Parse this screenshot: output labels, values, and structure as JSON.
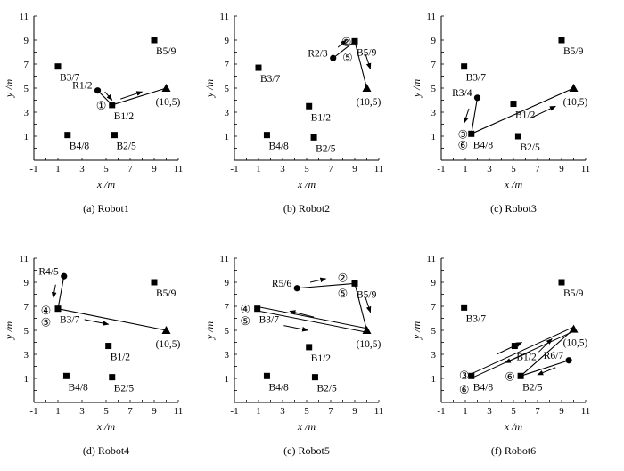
{
  "chart_data": [
    {
      "type": "scatter",
      "caption": "(a) Robot1",
      "xlabel": "x /m",
      "ylabel": "y /m",
      "xlim": [
        -1,
        11
      ],
      "ylim": [
        -1,
        11
      ],
      "xticks": [
        "-1",
        "1",
        "3",
        "5",
        "7",
        "9",
        "11"
      ],
      "yticks": [
        "1",
        "3",
        "5",
        "7",
        "9",
        "11"
      ],
      "boxes": [
        {
          "label": "B3/7",
          "x": 1.0,
          "y": 6.8
        },
        {
          "label": "B5/9",
          "x": 9.0,
          "y": 9.0
        },
        {
          "label": "B1/2",
          "x": 5.5,
          "y": 3.6
        },
        {
          "label": "B4/8",
          "x": 1.8,
          "y": 1.1
        },
        {
          "label": "B2/5",
          "x": 5.7,
          "y": 1.1
        }
      ],
      "robot": {
        "label": "R1/2",
        "x": 4.3,
        "y": 4.8
      },
      "target": {
        "label": "(10,5)",
        "x": 10.0,
        "y": 5.0
      },
      "path": [
        [
          4.3,
          4.8
        ],
        [
          5.5,
          3.6
        ],
        [
          10.0,
          5.0
        ]
      ],
      "steps": [
        {
          "num": "①",
          "x": 4.6,
          "y": 3.6
        }
      ],
      "arrows": [
        [
          4.9,
          4.7,
          5.5,
          4.0
        ],
        [
          6.2,
          4.1,
          8.0,
          4.7
        ]
      ]
    },
    {
      "type": "scatter",
      "caption": "(b) Robot2",
      "xlabel": "x /m",
      "ylabel": "y /m",
      "xlim": [
        -1,
        11
      ],
      "ylim": [
        -1,
        11
      ],
      "xticks": [
        "-1",
        "1",
        "3",
        "5",
        "7",
        "9",
        "11"
      ],
      "yticks": [
        "1",
        "3",
        "5",
        "7",
        "9",
        "11"
      ],
      "boxes": [
        {
          "label": "B3/7",
          "x": 1.0,
          "y": 6.7
        },
        {
          "label": "B5/9",
          "x": 9.0,
          "y": 8.9
        },
        {
          "label": "B1/2",
          "x": 5.2,
          "y": 3.5
        },
        {
          "label": "B4/8",
          "x": 1.7,
          "y": 1.1
        },
        {
          "label": "B2/5",
          "x": 5.6,
          "y": 0.9
        }
      ],
      "robot": {
        "label": "R2/3",
        "x": 7.2,
        "y": 7.5
      },
      "target": {
        "label": "(10,5)",
        "x": 10.0,
        "y": 5.0
      },
      "path": [
        [
          7.2,
          7.5
        ],
        [
          9.0,
          8.9
        ],
        [
          10.0,
          5.0
        ]
      ],
      "steps": [
        {
          "num": "②",
          "x": 8.3,
          "y": 8.9
        },
        {
          "num": "⑤",
          "x": 8.4,
          "y": 7.6
        }
      ],
      "arrows": [
        [
          7.6,
          8.4,
          8.3,
          9.0
        ],
        [
          9.9,
          7.8,
          10.3,
          6.6
        ]
      ]
    },
    {
      "type": "scatter",
      "caption": "(c) Robot3",
      "xlabel": "x /m",
      "ylabel": "y /m",
      "xlim": [
        -1,
        11
      ],
      "ylim": [
        -1,
        11
      ],
      "xticks": [
        "-1",
        "1",
        "3",
        "5",
        "7",
        "9",
        "11"
      ],
      "yticks": [
        "1",
        "3",
        "5",
        "7",
        "9",
        "11"
      ],
      "boxes": [
        {
          "label": "B3/7",
          "x": 0.9,
          "y": 6.8
        },
        {
          "label": "B5/9",
          "x": 9.0,
          "y": 9.0
        },
        {
          "label": "B1/2",
          "x": 5.0,
          "y": 3.7
        },
        {
          "label": "B4/8",
          "x": 1.5,
          "y": 1.2
        },
        {
          "label": "B2/5",
          "x": 5.4,
          "y": 1.0
        }
      ],
      "robot": {
        "label": "R3/4",
        "x": 2.0,
        "y": 4.2
      },
      "target": {
        "label": "(10,5)",
        "x": 10.0,
        "y": 5.0
      },
      "path": [
        [
          2.0,
          4.2
        ],
        [
          1.5,
          1.2
        ],
        [
          10.0,
          5.0
        ]
      ],
      "steps": [
        {
          "num": "③",
          "x": 0.8,
          "y": 1.2
        },
        {
          "num": "⑥",
          "x": 0.8,
          "y": 0.3
        }
      ],
      "arrows": [
        [
          1.3,
          3.3,
          0.9,
          2.1
        ],
        [
          6.4,
          2.5,
          8.5,
          3.5
        ]
      ]
    },
    {
      "type": "scatter",
      "caption": "(d) Robot4",
      "xlabel": "x /m",
      "ylabel": "y /m",
      "xlim": [
        -1,
        11
      ],
      "ylim": [
        -1,
        11
      ],
      "xticks": [
        "-1",
        "1",
        "3",
        "5",
        "7",
        "9",
        "11"
      ],
      "yticks": [
        "1",
        "3",
        "5",
        "7",
        "9",
        "11"
      ],
      "boxes": [
        {
          "label": "B3/7",
          "x": 1.0,
          "y": 6.8
        },
        {
          "label": "B5/9",
          "x": 9.0,
          "y": 9.0
        },
        {
          "label": "B1/2",
          "x": 5.2,
          "y": 3.7
        },
        {
          "label": "B4/8",
          "x": 1.7,
          "y": 1.2
        },
        {
          "label": "B2/5",
          "x": 5.5,
          "y": 1.1
        }
      ],
      "robot": {
        "label": "R4/5",
        "x": 1.5,
        "y": 9.5
      },
      "target": {
        "label": "(10,5)",
        "x": 10.0,
        "y": 5.0
      },
      "path": [
        [
          1.5,
          9.5
        ],
        [
          1.0,
          6.8
        ],
        [
          10.0,
          5.0
        ]
      ],
      "steps": [
        {
          "num": "④",
          "x": 0.0,
          "y": 6.7
        },
        {
          "num": "⑤",
          "x": 0.0,
          "y": 5.7
        }
      ],
      "arrows": [
        [
          0.8,
          8.8,
          0.6,
          7.7
        ],
        [
          3.2,
          5.9,
          5.2,
          5.5
        ]
      ]
    },
    {
      "type": "scatter",
      "caption": "(e) Robot5",
      "xlabel": "x /m",
      "ylabel": "y /m",
      "xlim": [
        -1,
        11
      ],
      "ylim": [
        -1,
        11
      ],
      "xticks": [
        "-1",
        "1",
        "3",
        "5",
        "7",
        "9",
        "11"
      ],
      "yticks": [
        "1",
        "3",
        "5",
        "7",
        "9",
        "11"
      ],
      "boxes": [
        {
          "label": "B3/7",
          "x": 0.9,
          "y": 6.8
        },
        {
          "label": "B5/9",
          "x": 9.0,
          "y": 8.9
        },
        {
          "label": "B1/2",
          "x": 5.2,
          "y": 3.6
        },
        {
          "label": "B4/8",
          "x": 1.7,
          "y": 1.2
        },
        {
          "label": "B2/5",
          "x": 5.7,
          "y": 1.1
        }
      ],
      "robot": {
        "label": "R5/6",
        "x": 4.2,
        "y": 8.5
      },
      "target": {
        "label": "(10,5)",
        "x": 10.0,
        "y": 5.0
      },
      "path": [
        [
          4.2,
          8.5
        ],
        [
          9.0,
          8.9
        ],
        [
          10.0,
          5.0
        ]
      ],
      "shuttle": [
        [
          0.9,
          6.8
        ],
        [
          10.0,
          5.0
        ]
      ],
      "steps": [
        {
          "num": "②",
          "x": 8.0,
          "y": 9.4
        },
        {
          "num": "⑤",
          "x": 8.0,
          "y": 8.1
        },
        {
          "num": "④",
          "x": -0.1,
          "y": 6.8
        },
        {
          "num": "⑤",
          "x": -0.1,
          "y": 5.8
        }
      ],
      "arrows": [
        [
          5.3,
          9.0,
          6.6,
          9.3
        ],
        [
          9.9,
          7.7,
          10.3,
          6.5
        ],
        [
          5.6,
          6.1,
          3.6,
          6.6
        ],
        [
          3.1,
          5.4,
          5.1,
          5.0
        ]
      ]
    },
    {
      "type": "scatter",
      "caption": "(f) Robot6",
      "xlabel": "x /m",
      "ylabel": "y /m",
      "xlim": [
        -1,
        11
      ],
      "ylim": [
        -1,
        11
      ],
      "xticks": [
        "-1",
        "1",
        "3",
        "5",
        "7",
        "9",
        "11"
      ],
      "yticks": [
        "1",
        "3",
        "5",
        "7",
        "9",
        "11"
      ],
      "boxes": [
        {
          "label": "B3/7",
          "x": 0.9,
          "y": 6.9
        },
        {
          "label": "B5/9",
          "x": 9.0,
          "y": 9.0
        },
        {
          "label": "B1/2",
          "x": 5.1,
          "y": 3.7
        },
        {
          "label": "B4/8",
          "x": 1.5,
          "y": 1.2
        },
        {
          "label": "B2/5",
          "x": 5.6,
          "y": 1.2
        }
      ],
      "robot": {
        "label": "R6/7",
        "x": 9.6,
        "y": 2.5
      },
      "target": {
        "label": "(10,5)",
        "x": 10.0,
        "y": 5.1
      },
      "path": [
        [
          9.6,
          2.5
        ],
        [
          5.6,
          1.2
        ],
        [
          10.0,
          5.1
        ]
      ],
      "shuttle": [
        [
          1.5,
          1.2
        ],
        [
          10.0,
          5.1
        ]
      ],
      "steps": [
        {
          "num": "③",
          "x": 0.9,
          "y": 1.3
        },
        {
          "num": "⑥",
          "x": 0.9,
          "y": 0.1
        },
        {
          "num": "⑥",
          "x": 4.7,
          "y": 1.2
        }
      ],
      "arrows": [
        [
          3.6,
          3.0,
          5.7,
          4.0
        ],
        [
          6.4,
          3.2,
          4.3,
          2.3
        ],
        [
          7.1,
          3.2,
          8.2,
          4.3
        ],
        [
          8.5,
          1.9,
          7.0,
          1.3
        ]
      ]
    }
  ]
}
